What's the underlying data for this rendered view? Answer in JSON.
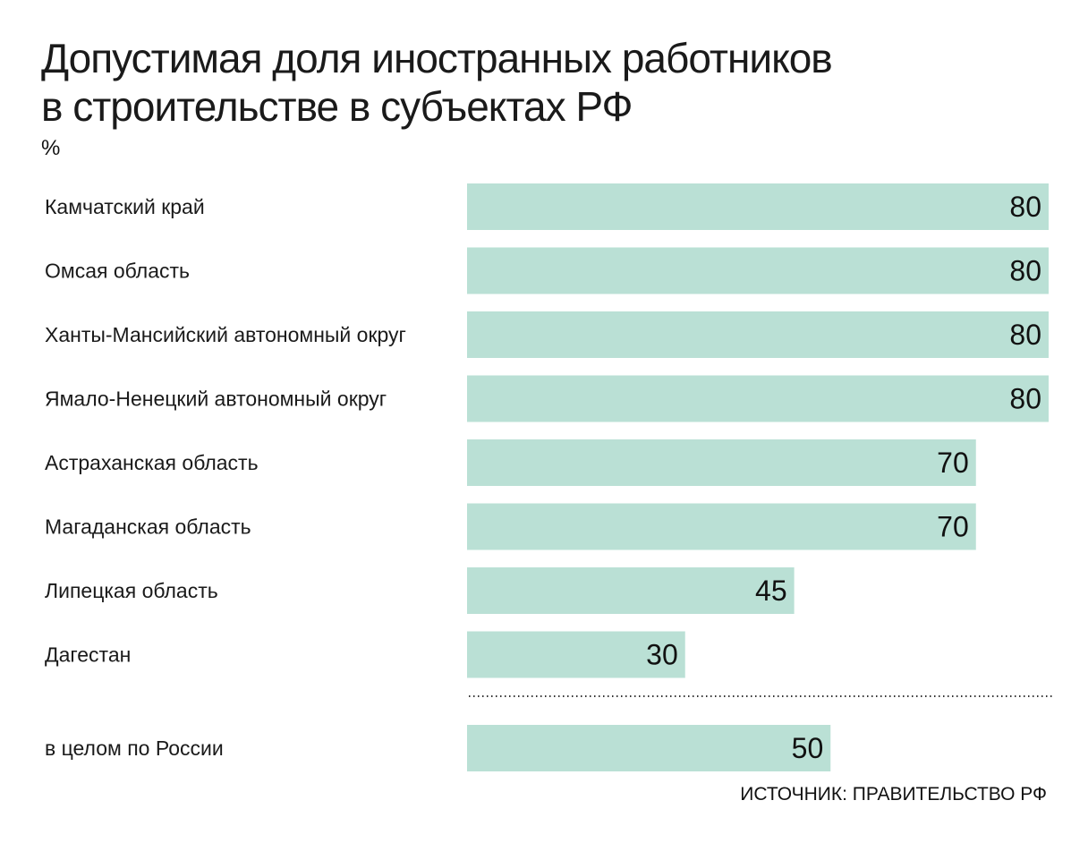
{
  "chart_data": {
    "type": "bar",
    "orientation": "horizontal",
    "title": "Допустимая доля иностранных работников в строительстве в субъектах РФ",
    "title_lines": [
      "Допустимая доля иностранных работников",
      "в строительстве в субъектах РФ"
    ],
    "unit": "%",
    "categories": [
      "Камчатский край",
      "Омсая область",
      "Ханты-Мансийский автономный округ",
      "Ямало-Ненецкий автономный округ",
      "Астраханская область",
      "Магаданская область",
      "Липецкая область",
      "Дагестан"
    ],
    "values": [
      80,
      80,
      80,
      80,
      70,
      70,
      45,
      30
    ],
    "total": {
      "category": "в целом по России",
      "value": 50
    },
    "xlim": [
      0,
      80
    ],
    "grid": false,
    "bar_color": "#bae0d5",
    "source": "ИСТОЧНИК: ПРАВИТЕЛЬСТВО РФ"
  }
}
